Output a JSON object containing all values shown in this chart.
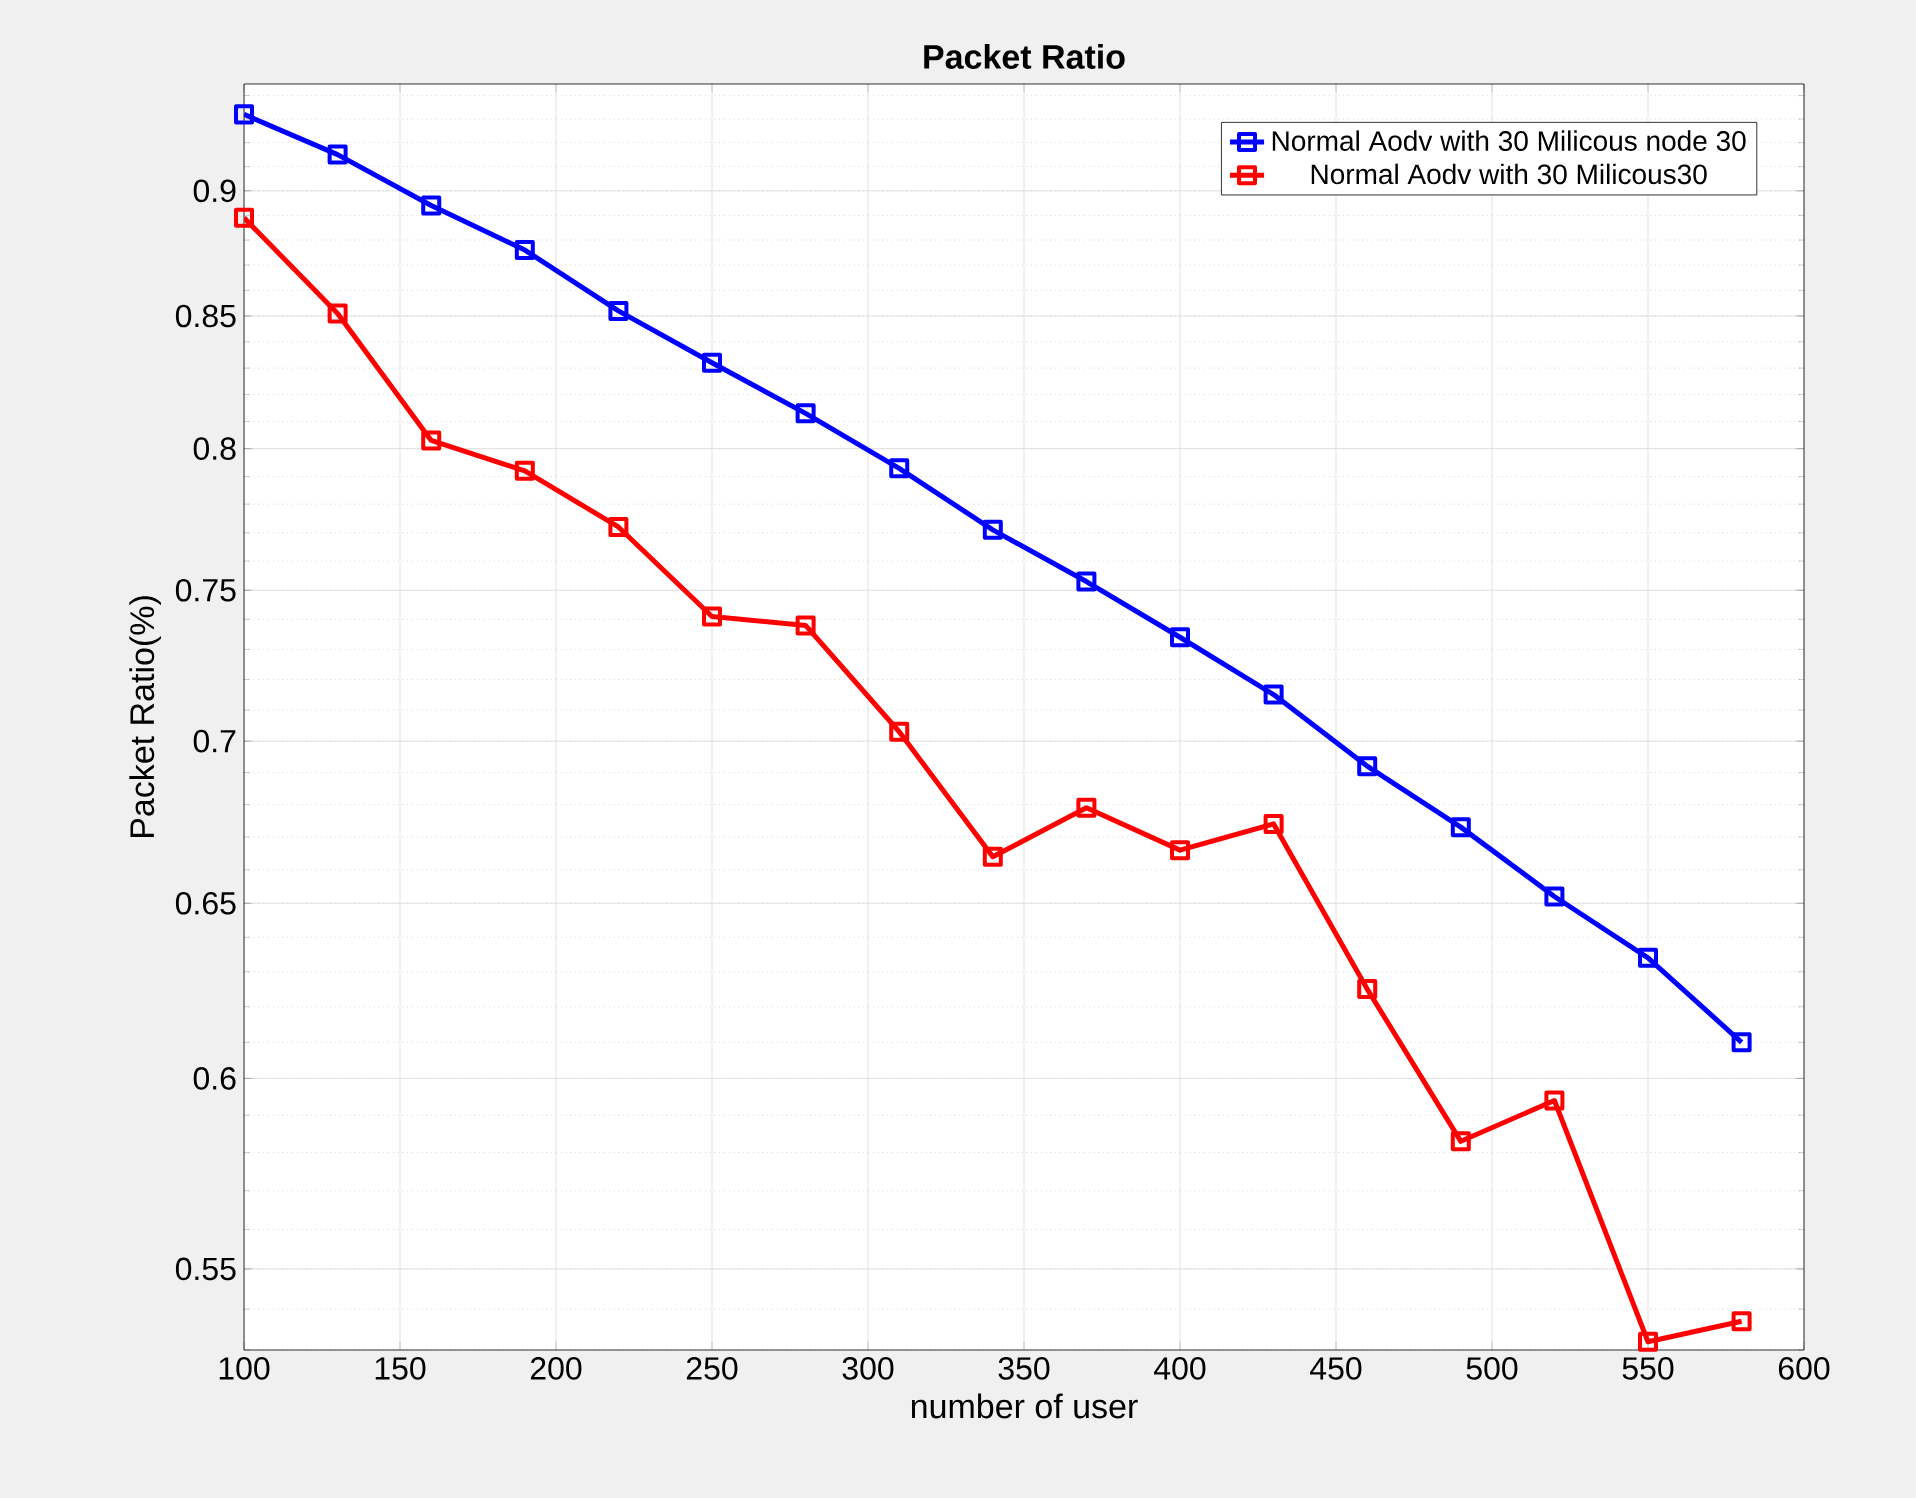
{
  "chart_data": {
    "type": "line",
    "title": "Packet Ratio",
    "xlabel": "number of user",
    "ylabel": "Packet Ratio(%)",
    "x": [
      100,
      130,
      160,
      190,
      220,
      250,
      280,
      310,
      340,
      370,
      400,
      430,
      460,
      490,
      520,
      550,
      580
    ],
    "series": [
      {
        "name": "Normal Aodv with 30 Milicous node 30",
        "color": "#0000ff",
        "values": [
          0.932,
          0.915,
          0.894,
          0.876,
          0.852,
          0.832,
          0.813,
          0.793,
          0.771,
          0.753,
          0.734,
          0.715,
          0.692,
          0.673,
          0.652,
          0.634,
          0.61
        ]
      },
      {
        "name": "Normal Aodv with 30 Milicous30",
        "color": "#ff0000",
        "values": [
          0.889,
          0.851,
          0.803,
          0.792,
          0.772,
          0.741,
          0.738,
          0.703,
          0.664,
          0.679,
          0.666,
          0.674,
          0.625,
          0.583,
          0.594,
          0.532,
          0.537
        ]
      }
    ],
    "xlim": [
      100,
      600
    ],
    "ylim": [
      0.53,
      0.945
    ],
    "xticks": [
      100,
      150,
      200,
      250,
      300,
      350,
      400,
      450,
      500,
      550,
      600
    ],
    "yticks": [
      0.55,
      0.6,
      0.65,
      0.7,
      0.75,
      0.8,
      0.85,
      0.9
    ],
    "log": "y",
    "grid": true,
    "legend": "top right",
    "marker": "square",
    "line_style": "solid"
  }
}
